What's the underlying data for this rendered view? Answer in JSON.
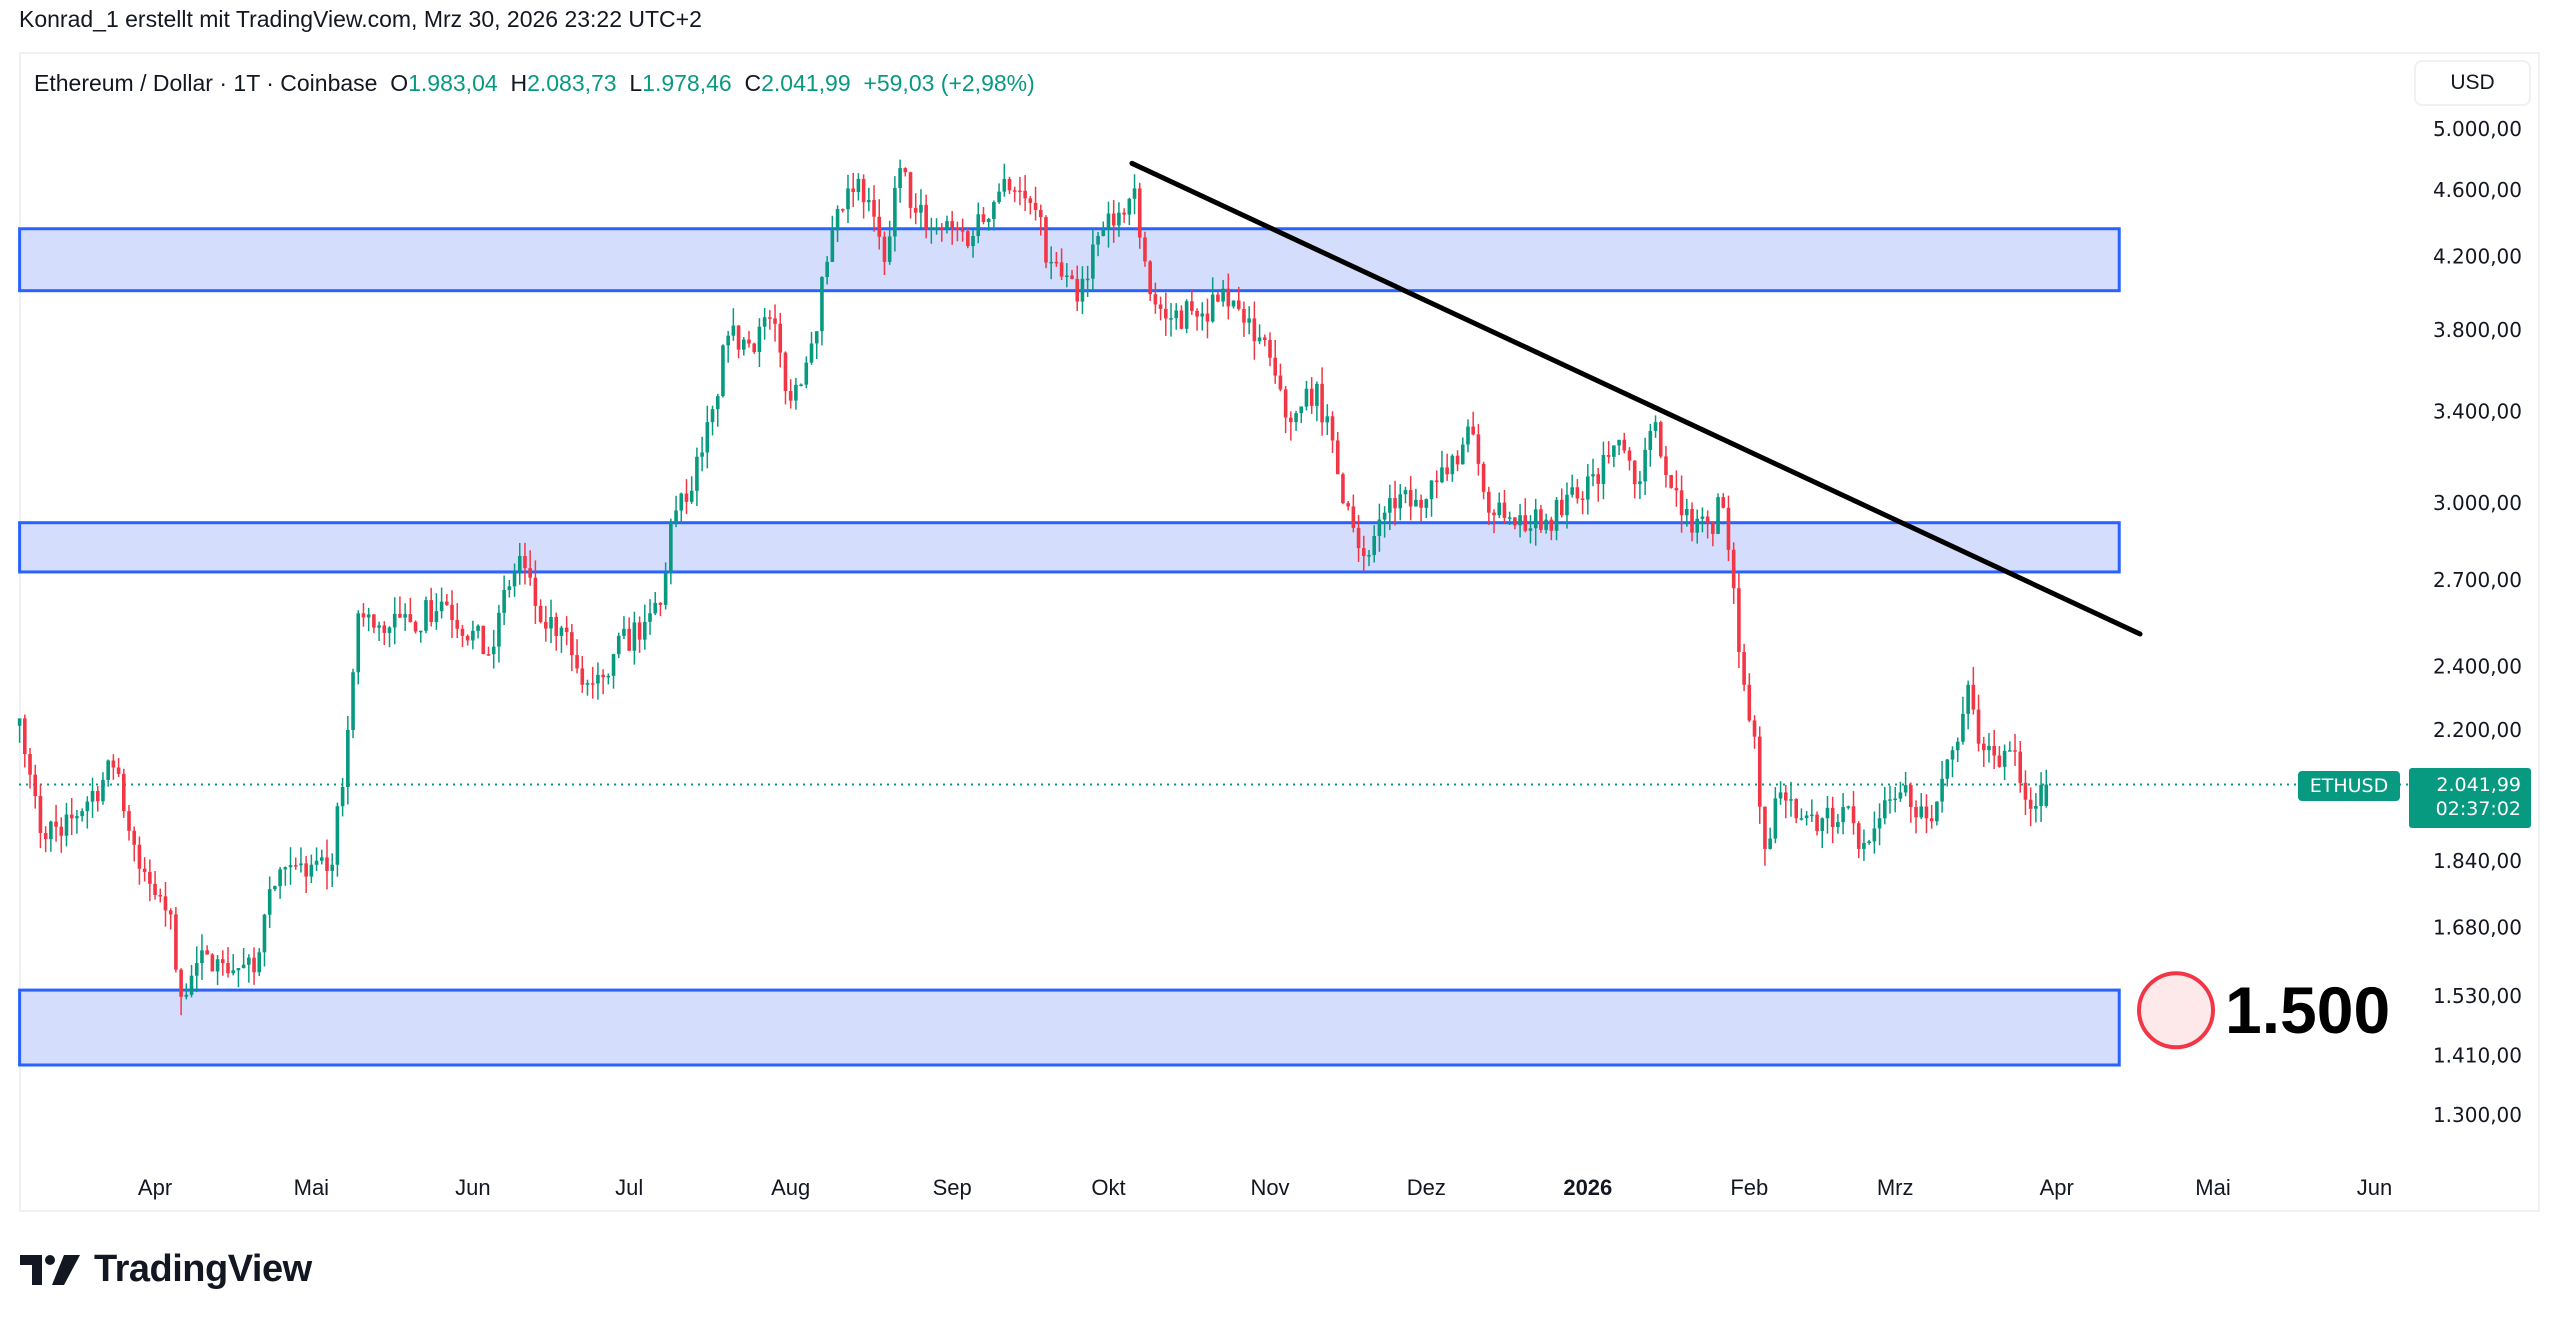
{
  "caption": "Konrad_1 erstellt mit TradingView.com, Mrz 30, 2026 23:22 UTC+2",
  "legend": {
    "symbol": "Ethereum / Dollar · 1T · Coinbase",
    "o_label": "O",
    "o": "1.983,04",
    "h_label": "H",
    "h": "2.083,73",
    "l_label": "L",
    "l": "1.978,46",
    "c_label": "C",
    "c": "2.041,99",
    "change": "+59,03 (+2,98%)"
  },
  "currency_button": "USD",
  "last_price": {
    "symbol": "ETHUSD",
    "price": "2.041,99",
    "countdown": "02:37:02",
    "value": 2041.99
  },
  "annotation": {
    "target_label": "1.500",
    "target_price": 1500
  },
  "logo_text": "TradingView",
  "colors": {
    "up": "#089981",
    "down": "#F23645",
    "zone_fill": "#d4ddfc",
    "zone_border": "#2962ff",
    "trendline": "#000000",
    "marker": "#F23645"
  },
  "chart_data": {
    "type": "candlestick",
    "title": "Ethereum / Dollar · 1T · Coinbase",
    "scale": "log",
    "start_date": "2025-03-06",
    "ylim": [
      1180,
      5400
    ],
    "y_ticks": [
      {
        "value": 5000,
        "label": "5.000,00"
      },
      {
        "value": 4600,
        "label": "4.600,00"
      },
      {
        "value": 4200,
        "label": "4.200,00"
      },
      {
        "value": 3800,
        "label": "3.800,00"
      },
      {
        "value": 3400,
        "label": "3.400,00"
      },
      {
        "value": 3000,
        "label": "3.000,00"
      },
      {
        "value": 2700,
        "label": "2.700,00"
      },
      {
        "value": 2400,
        "label": "2.400,00"
      },
      {
        "value": 2200,
        "label": "2.200,00"
      },
      {
        "value": 1840,
        "label": "1.840,00"
      },
      {
        "value": 1680,
        "label": "1.680,00"
      },
      {
        "value": 1530,
        "label": "1.530,00"
      },
      {
        "value": 1410,
        "label": "1.410,00"
      },
      {
        "value": 1300,
        "label": "1.300,00"
      }
    ],
    "x_ticks": [
      {
        "day": 26,
        "label": "Apr"
      },
      {
        "day": 56,
        "label": "Mai"
      },
      {
        "day": 87,
        "label": "Jun"
      },
      {
        "day": 117,
        "label": "Jul"
      },
      {
        "day": 148,
        "label": "Aug"
      },
      {
        "day": 179,
        "label": "Sep"
      },
      {
        "day": 209,
        "label": "Okt"
      },
      {
        "day": 240,
        "label": "Nov"
      },
      {
        "day": 270,
        "label": "Dez"
      },
      {
        "day": 301,
        "label": "2026",
        "bold": true
      },
      {
        "day": 332,
        "label": "Feb"
      },
      {
        "day": 360,
        "label": "Mrz"
      },
      {
        "day": 391,
        "label": "Apr"
      },
      {
        "day": 421,
        "label": "Mai"
      },
      {
        "day": 452,
        "label": "Jun"
      }
    ],
    "close_anchors": [
      [
        0,
        2235
      ],
      [
        4,
        1911
      ],
      [
        10,
        1950
      ],
      [
        18,
        2090
      ],
      [
        23,
        1820
      ],
      [
        29,
        1710
      ],
      [
        31,
        1528
      ],
      [
        34,
        1600
      ],
      [
        39,
        1600
      ],
      [
        45,
        1580
      ],
      [
        48,
        1770
      ],
      [
        56,
        1830
      ],
      [
        60,
        1830
      ],
      [
        63,
        2200
      ],
      [
        65,
        2580
      ],
      [
        68,
        2530
      ],
      [
        75,
        2550
      ],
      [
        82,
        2610
      ],
      [
        90,
        2440
      ],
      [
        96,
        2790
      ],
      [
        100,
        2550
      ],
      [
        104,
        2530
      ],
      [
        108,
        2340
      ],
      [
        114,
        2440
      ],
      [
        120,
        2550
      ],
      [
        123,
        2610
      ],
      [
        125,
        2920
      ],
      [
        129,
        3050
      ],
      [
        133,
        3410
      ],
      [
        136,
        3770
      ],
      [
        140,
        3730
      ],
      [
        144,
        3860
      ],
      [
        148,
        3450
      ],
      [
        152,
        3730
      ],
      [
        155,
        4170
      ],
      [
        159,
        4610
      ],
      [
        161,
        4670
      ],
      [
        166,
        4170
      ],
      [
        169,
        4740
      ],
      [
        172,
        4460
      ],
      [
        176,
        4370
      ],
      [
        183,
        4320
      ],
      [
        189,
        4670
      ],
      [
        194,
        4520
      ],
      [
        198,
        4170
      ],
      [
        203,
        3950
      ],
      [
        206,
        4270
      ],
      [
        211,
        4460
      ],
      [
        214,
        4610
      ],
      [
        217,
        3990
      ],
      [
        220,
        3860
      ],
      [
        225,
        3900
      ],
      [
        230,
        3950
      ],
      [
        236,
        3860
      ],
      [
        241,
        3570
      ],
      [
        244,
        3350
      ],
      [
        249,
        3530
      ],
      [
        253,
        3120
      ],
      [
        258,
        2790
      ],
      [
        263,
        3020
      ],
      [
        269,
        2980
      ],
      [
        274,
        3120
      ],
      [
        278,
        3330
      ],
      [
        283,
        2950
      ],
      [
        288,
        2950
      ],
      [
        296,
        2950
      ],
      [
        302,
        3120
      ],
      [
        307,
        3270
      ],
      [
        311,
        3090
      ],
      [
        314,
        3350
      ],
      [
        319,
        2950
      ],
      [
        324,
        2920
      ],
      [
        327,
        2980
      ],
      [
        329,
        2670
      ],
      [
        331,
        2340
      ],
      [
        333,
        2180
      ],
      [
        335,
        1870
      ],
      [
        338,
        2020
      ],
      [
        341,
        1950
      ],
      [
        346,
        1950
      ],
      [
        350,
        1980
      ],
      [
        353,
        1870
      ],
      [
        357,
        1950
      ],
      [
        361,
        2020
      ],
      [
        366,
        1950
      ],
      [
        371,
        2140
      ],
      [
        374,
        2340
      ],
      [
        377,
        2140
      ],
      [
        382,
        2140
      ],
      [
        385,
        2000
      ],
      [
        387,
        1983.04
      ],
      [
        389,
        2041.99
      ]
    ],
    "zones": [
      {
        "name": "resistance-zone-top",
        "from_price": 4009,
        "to_price": 4363,
        "start_day": 0,
        "end_day": 403
      },
      {
        "name": "support-resistance-zone-mid",
        "from_price": 2730,
        "to_price": 2920,
        "start_day": 0,
        "end_day": 403
      },
      {
        "name": "support-zone-bottom",
        "from_price": 1392,
        "to_price": 1542,
        "start_day": 0,
        "end_day": 403
      }
    ],
    "trendline": {
      "start": {
        "day": 213.5,
        "price": 4771
      },
      "end": {
        "day": 407,
        "price": 2508
      }
    }
  }
}
